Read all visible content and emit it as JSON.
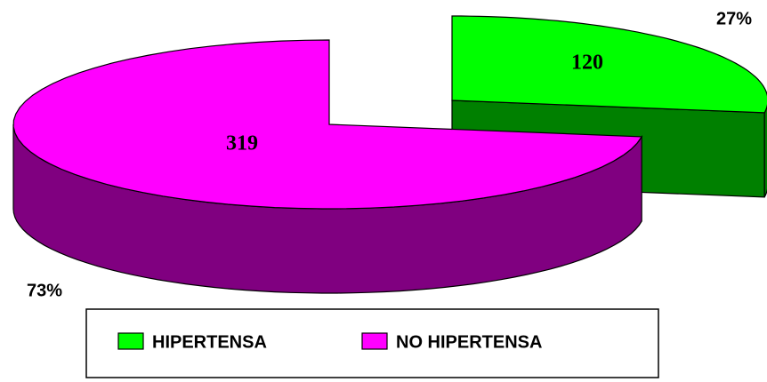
{
  "chart_data": {
    "type": "pie3d",
    "categories": [
      "HIPERTENSA",
      "NO HIPERTENSA"
    ],
    "values": [
      120,
      319
    ],
    "percent_labels": [
      "27%",
      "73%"
    ],
    "colors": [
      "#00ff00",
      "#ff00ff"
    ],
    "side_colors": [
      "#008000",
      "#800080"
    ],
    "legend": "bottom"
  }
}
